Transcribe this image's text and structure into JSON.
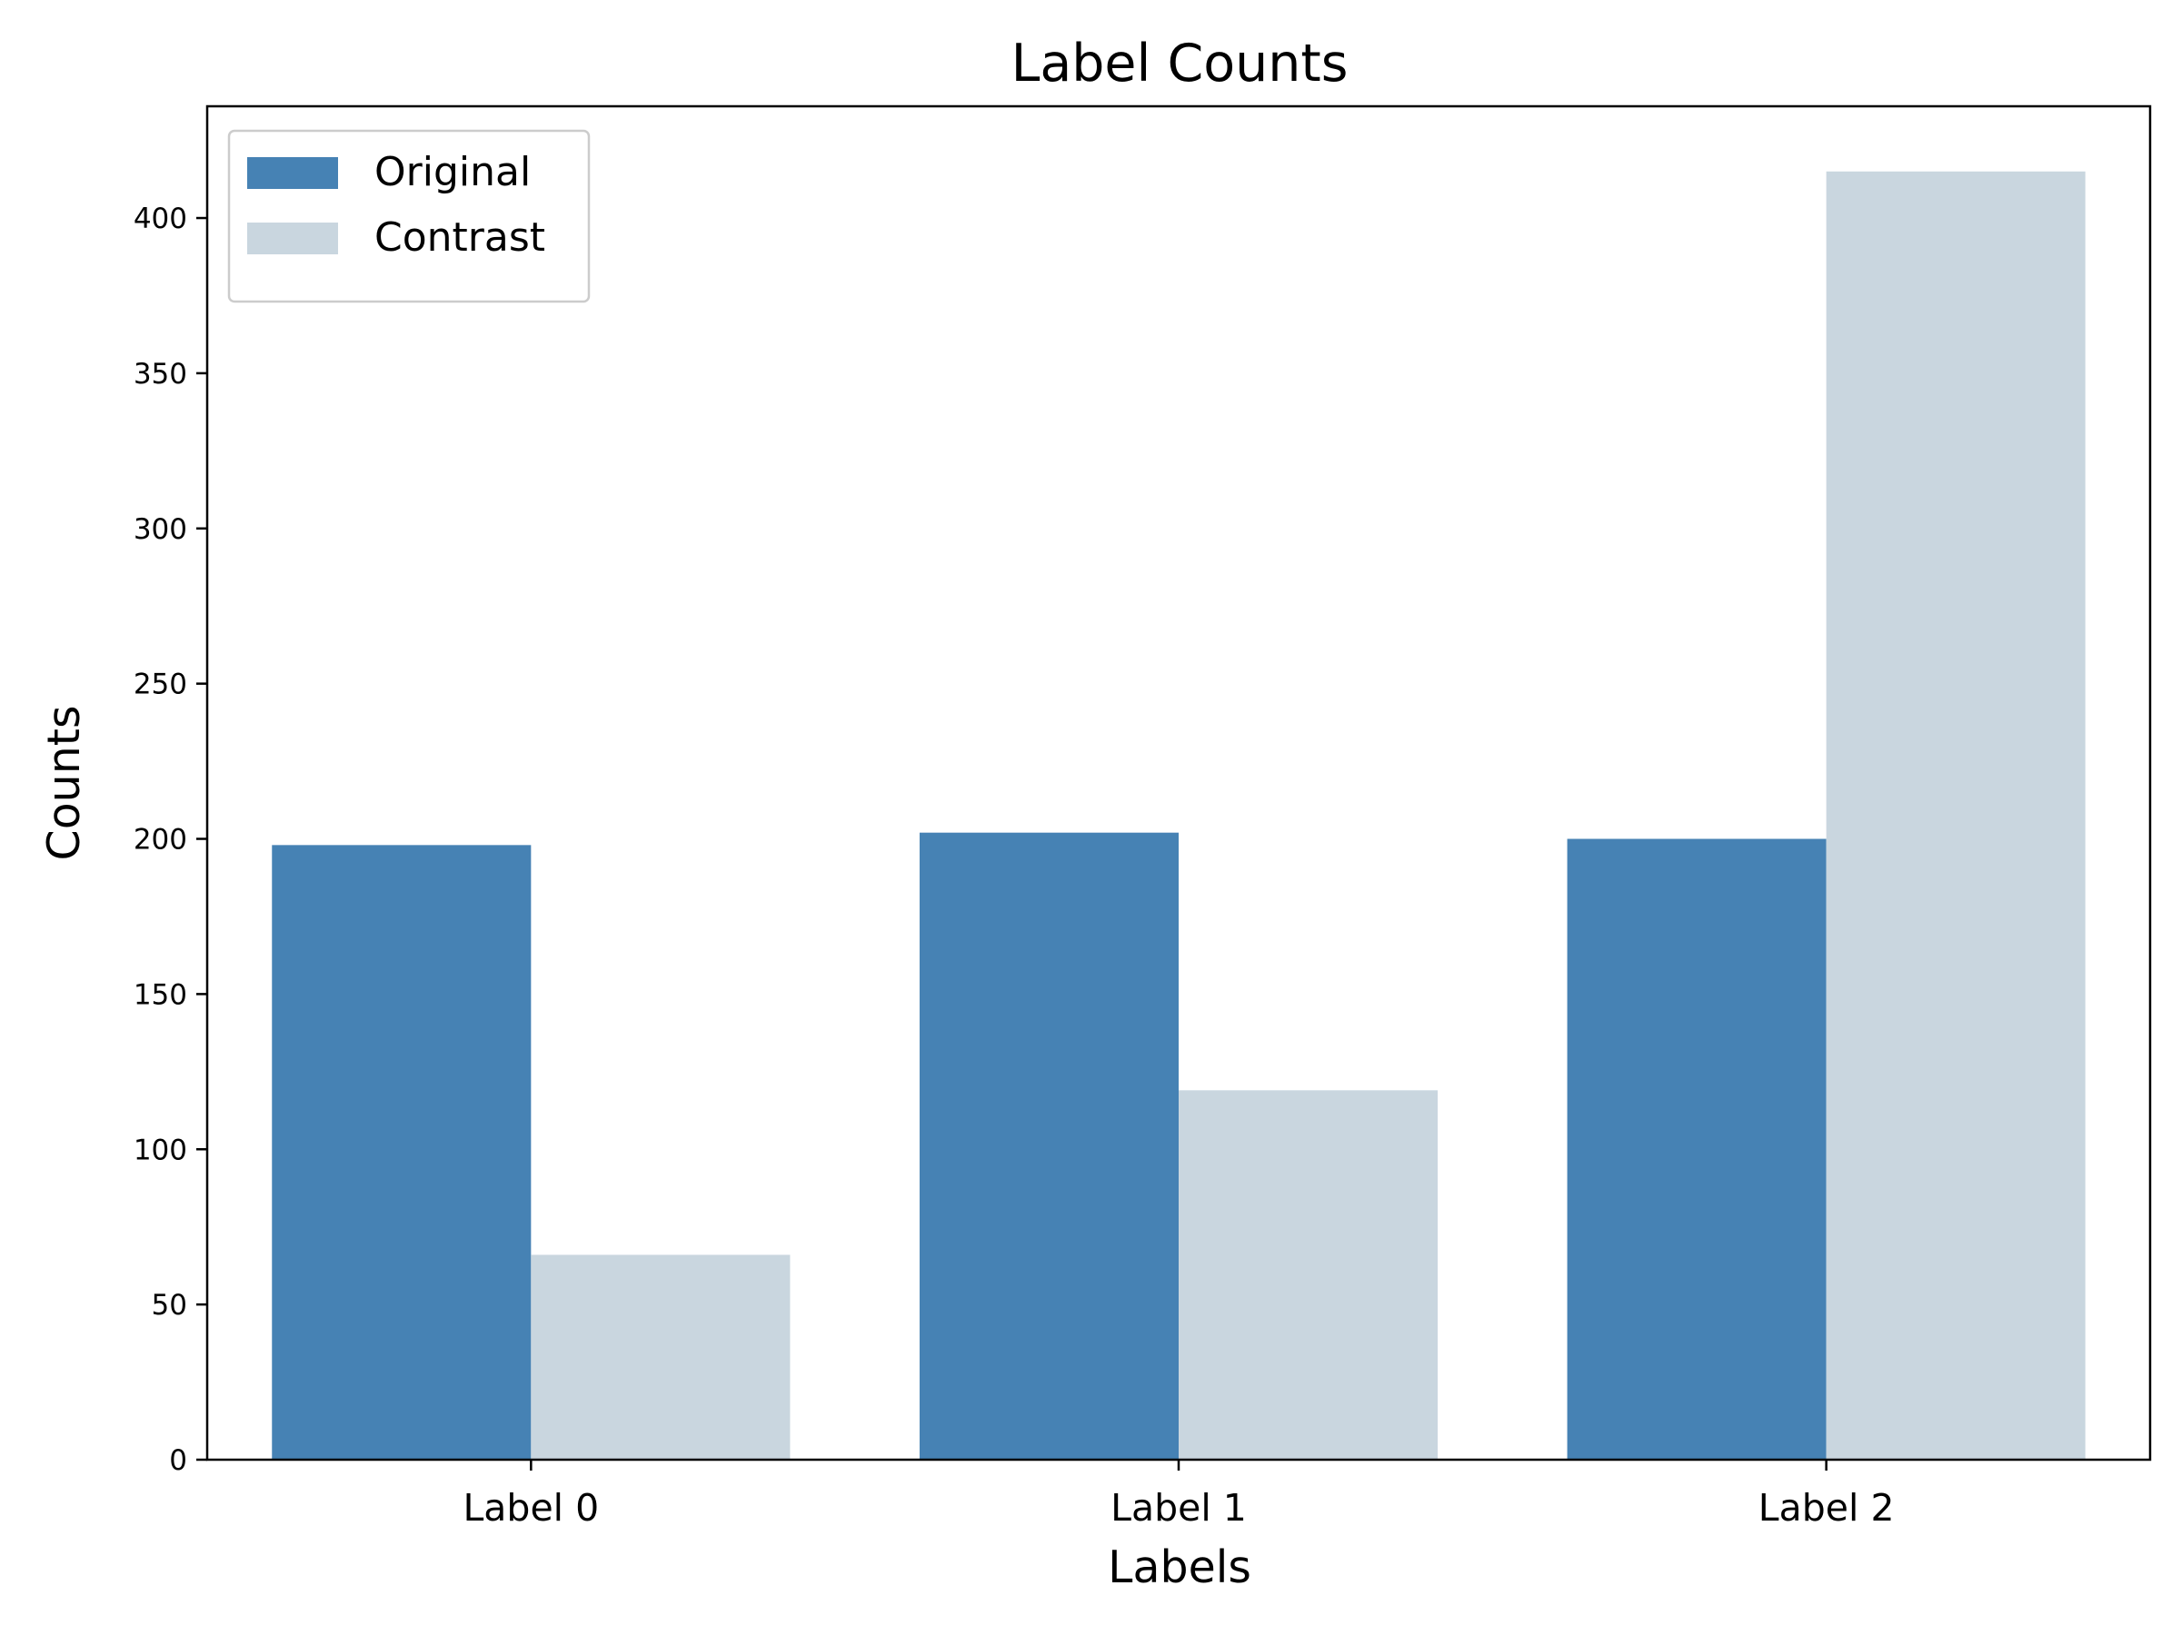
{
  "chart_data": {
    "type": "bar",
    "title": "Label Counts",
    "xlabel": "Labels",
    "ylabel": "Counts",
    "categories": [
      "Label 0",
      "Label 1",
      "Label 2"
    ],
    "series": [
      {
        "name": "Original",
        "values": [
          198,
          202,
          200
        ],
        "color": "#4682b4"
      },
      {
        "name": "Contrast",
        "values": [
          66,
          119,
          415
        ],
        "color": "#c9d6df"
      }
    ],
    "ylim": [
      0,
      436
    ],
    "yticks": [
      0,
      50,
      100,
      150,
      200,
      250,
      300,
      350,
      400
    ],
    "grid": false,
    "legend_position": "top-left"
  }
}
